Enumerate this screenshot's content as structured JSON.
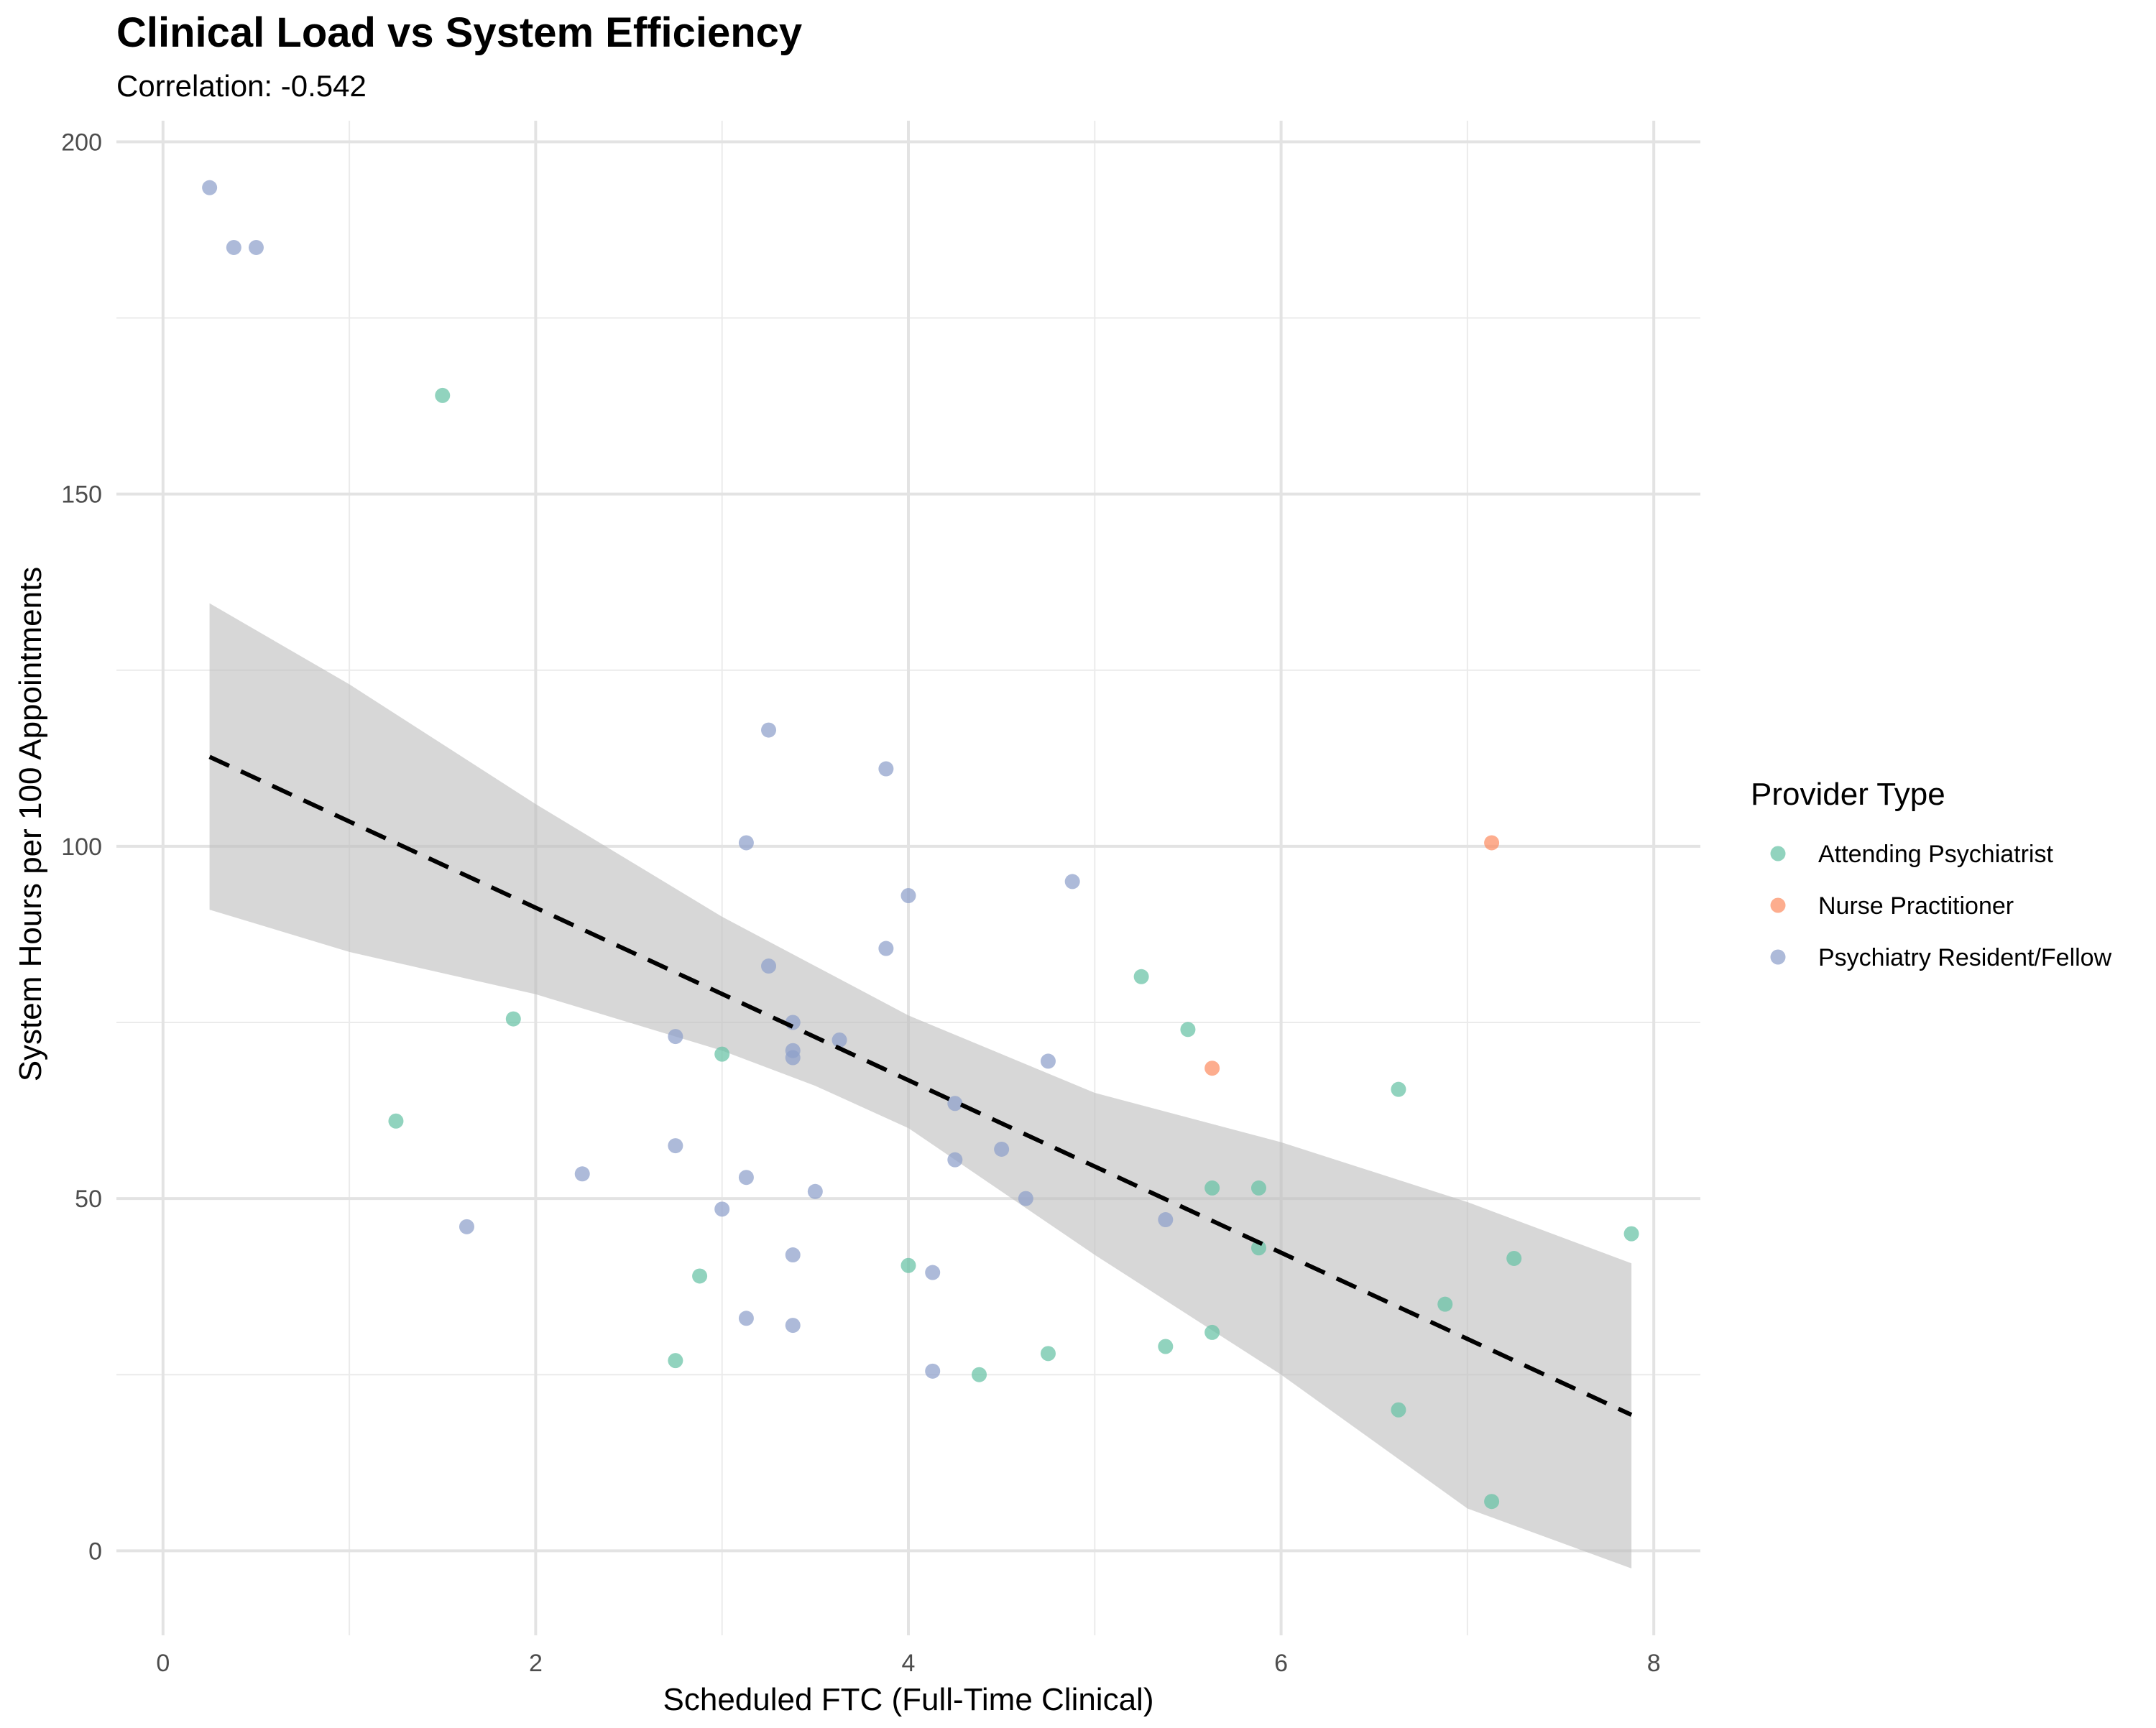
{
  "chart_data": {
    "type": "scatter",
    "title": "Clinical Load vs System Efficiency",
    "subtitle": "Correlation: -0.542",
    "xlabel": "Scheduled FTC (Full-Time Clinical)",
    "ylabel": "System Hours per 100 Appointments",
    "xlim": [
      -0.25,
      8.25
    ],
    "ylim": [
      -12,
      203
    ],
    "x_ticks": [
      0,
      2,
      4,
      6,
      8
    ],
    "y_ticks": [
      0,
      50,
      100,
      150,
      200
    ],
    "x_minor": [
      1,
      3,
      5,
      7
    ],
    "y_minor": [
      25,
      75,
      125,
      175
    ],
    "grid": true,
    "legend": {
      "title": "Provider Type",
      "position": "right"
    },
    "series": [
      {
        "name": "Attending Psychiatrist",
        "color": "#66c2a5",
        "points": [
          {
            "x": 1.5,
            "y": 164
          },
          {
            "x": 1.88,
            "y": 75.5
          },
          {
            "x": 1.25,
            "y": 61
          },
          {
            "x": 3.0,
            "y": 70.5
          },
          {
            "x": 2.88,
            "y": 39
          },
          {
            "x": 2.75,
            "y": 27
          },
          {
            "x": 4.0,
            "y": 40.5
          },
          {
            "x": 4.38,
            "y": 25
          },
          {
            "x": 4.75,
            "y": 28
          },
          {
            "x": 5.25,
            "y": 81.5
          },
          {
            "x": 5.5,
            "y": 74
          },
          {
            "x": 5.63,
            "y": 51.5
          },
          {
            "x": 5.88,
            "y": 51.5
          },
          {
            "x": 5.88,
            "y": 43
          },
          {
            "x": 5.38,
            "y": 29
          },
          {
            "x": 5.63,
            "y": 31
          },
          {
            "x": 6.63,
            "y": 65.5
          },
          {
            "x": 6.88,
            "y": 35
          },
          {
            "x": 6.63,
            "y": 20
          },
          {
            "x": 7.25,
            "y": 41.5
          },
          {
            "x": 7.13,
            "y": 7
          },
          {
            "x": 7.88,
            "y": 45
          }
        ]
      },
      {
        "name": "Nurse Practitioner",
        "color": "#fc8d62",
        "points": [
          {
            "x": 7.13,
            "y": 100.5
          },
          {
            "x": 5.63,
            "y": 68.5
          }
        ]
      },
      {
        "name": "Psychiatry Resident/Fellow",
        "color": "#8da0cb",
        "points": [
          {
            "x": 0.25,
            "y": 193.5
          },
          {
            "x": 0.38,
            "y": 185
          },
          {
            "x": 0.5,
            "y": 185
          },
          {
            "x": 1.63,
            "y": 46
          },
          {
            "x": 2.25,
            "y": 53.5
          },
          {
            "x": 2.75,
            "y": 73
          },
          {
            "x": 2.75,
            "y": 57.5
          },
          {
            "x": 3.0,
            "y": 48.5
          },
          {
            "x": 3.13,
            "y": 100.5
          },
          {
            "x": 3.13,
            "y": 53
          },
          {
            "x": 3.13,
            "y": 33
          },
          {
            "x": 3.25,
            "y": 116.5
          },
          {
            "x": 3.25,
            "y": 83
          },
          {
            "x": 3.38,
            "y": 75
          },
          {
            "x": 3.38,
            "y": 71
          },
          {
            "x": 3.38,
            "y": 70
          },
          {
            "x": 3.38,
            "y": 42
          },
          {
            "x": 3.38,
            "y": 32
          },
          {
            "x": 3.5,
            "y": 51
          },
          {
            "x": 3.63,
            "y": 72.5
          },
          {
            "x": 3.88,
            "y": 111
          },
          {
            "x": 3.88,
            "y": 85.5
          },
          {
            "x": 4.0,
            "y": 93
          },
          {
            "x": 4.13,
            "y": 39.5
          },
          {
            "x": 4.13,
            "y": 25.5
          },
          {
            "x": 4.25,
            "y": 63.5
          },
          {
            "x": 4.25,
            "y": 55.5
          },
          {
            "x": 4.5,
            "y": 57
          },
          {
            "x": 4.63,
            "y": 50
          },
          {
            "x": 4.75,
            "y": 69.5
          },
          {
            "x": 4.88,
            "y": 95
          },
          {
            "x": 5.38,
            "y": 47
          }
        ]
      }
    ],
    "trend_line": {
      "style": "dashed",
      "color": "#000000",
      "x": [
        0.25,
        7.88
      ],
      "y": [
        112.7,
        19.3
      ]
    },
    "confidence_band": {
      "color": "#bebebe",
      "x": [
        0.25,
        1.0,
        2.0,
        3.0,
        3.5,
        4.0,
        5.0,
        6.0,
        7.0,
        7.88
      ],
      "upper": [
        134.5,
        123,
        106,
        90,
        83,
        76,
        65,
        58,
        49.5,
        40.8
      ],
      "lower": [
        91,
        85,
        79,
        71,
        66,
        60,
        42,
        25,
        6,
        -2.5
      ]
    }
  }
}
